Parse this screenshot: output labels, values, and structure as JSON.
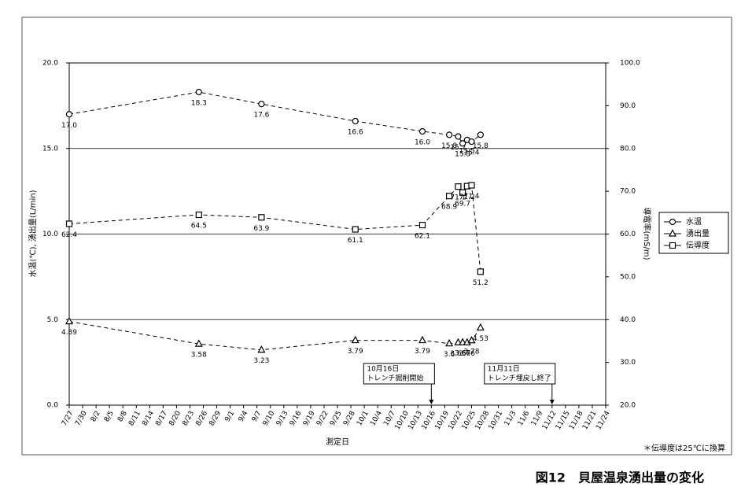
{
  "chart_data": {
    "type": "line",
    "y_label": "水温(℃), 湧出量(L/min)",
    "y2_label": "導電率(mS/m)",
    "x_label": "測定日",
    "footnote": "＊伝導度は25℃に換算",
    "caption": "図12　貝屋温泉湧出量の変化",
    "x": [
      "7/27",
      "8/25",
      "9/8",
      "9/29",
      "10/14",
      "10/20",
      "10/22",
      "10/23",
      "10/24",
      "10/25",
      "10/27"
    ],
    "xlim": [
      "7/27",
      "11/24"
    ],
    "xticks": [
      "7/27",
      "7/30",
      "8/2",
      "8/5",
      "8/8",
      "8/11",
      "8/14",
      "8/17",
      "8/20",
      "8/23",
      "8/26",
      "8/29",
      "9/1",
      "9/4",
      "9/7",
      "9/10",
      "9/13",
      "9/16",
      "9/19",
      "9/22",
      "9/25",
      "9/28",
      "10/1",
      "10/4",
      "10/7",
      "10/10",
      "10/13",
      "10/16",
      "10/19",
      "10/22",
      "10/25",
      "10/28",
      "10/31",
      "11/3",
      "11/6",
      "11/9",
      "11/12",
      "11/15",
      "11/18",
      "11/21",
      "11/24"
    ],
    "ylim": [
      0,
      20
    ],
    "yticks": [
      {
        "value": 0,
        "label": "0.0"
      },
      {
        "value": 5,
        "label": "5.0"
      },
      {
        "value": 10,
        "label": "10.0"
      },
      {
        "value": 15,
        "label": "15.0"
      },
      {
        "value": 20,
        "label": "20.0"
      }
    ],
    "y2lim": [
      20,
      100
    ],
    "y2ticks": [
      {
        "value": 20,
        "label": "20.0"
      },
      {
        "value": 30,
        "label": "30.0"
      },
      {
        "value": 40,
        "label": "40.0"
      },
      {
        "value": 50,
        "label": "50.0"
      },
      {
        "value": 60,
        "label": "60.0"
      },
      {
        "value": 70,
        "label": "70.0"
      },
      {
        "value": 80,
        "label": "80.0"
      },
      {
        "value": 90,
        "label": "90.0"
      },
      {
        "value": 100,
        "label": "100.0"
      }
    ],
    "grid": true,
    "legend": "right",
    "series": [
      {
        "name": "水温",
        "marker": "circle",
        "color": "#000000",
        "values": [
          17.0,
          18.3,
          17.6,
          16.6,
          16.0,
          15.8,
          15.7,
          15.3,
          15.5,
          15.4,
          15.8
        ],
        "value_labels": [
          "17.0",
          "18.3",
          "17.6",
          "16.6",
          "16.0",
          "15.8",
          "15.7",
          "15.3",
          "15.5",
          "15.4",
          "15.8"
        ]
      },
      {
        "name": "湧出量",
        "marker": "triangle",
        "color": "#000000",
        "values": [
          4.89,
          3.58,
          3.23,
          3.79,
          3.79,
          3.6,
          3.66,
          3.67,
          3.66,
          3.78,
          4.53
        ]
      },
      {
        "name": "伝導度",
        "marker": "square",
        "color": "#000000",
        "axis": "y2",
        "values": [
          62.4,
          64.5,
          63.9,
          61.1,
          62.1,
          68.9,
          71.1,
          69.7,
          71.2,
          71.4,
          51.2
        ]
      }
    ],
    "annotations": [
      {
        "x": "10/16",
        "lines": [
          "10月16日",
          "トレンチ掘削開始"
        ]
      },
      {
        "x": "11/12",
        "lines": [
          "11月11日",
          "トレンチ埋戻し終了"
        ]
      }
    ]
  }
}
